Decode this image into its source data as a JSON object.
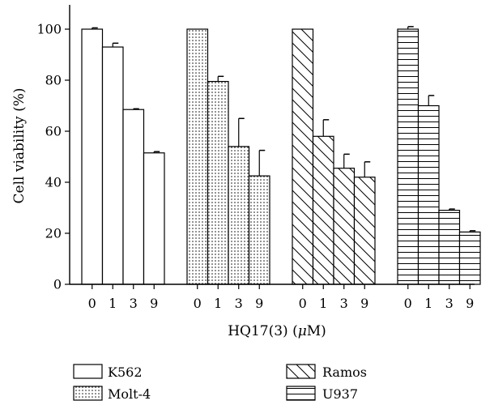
{
  "chart_data": {
    "type": "bar",
    "xlabel_main": "HQ17(3) (",
    "xlabel_unit_mu": "μ",
    "xlabel_unit_rest": "M)",
    "ylabel": "Cell viability (%)",
    "ylim": [
      0,
      100
    ],
    "yticks": [
      0,
      20,
      40,
      60,
      80,
      100
    ],
    "categories": [
      "0",
      "1",
      "3",
      "9"
    ],
    "series": [
      {
        "name": "K562",
        "pattern": "plain",
        "values": [
          100,
          93,
          68.5,
          51.5
        ],
        "errors": [
          0.5,
          1.5,
          0.3,
          0.5
        ]
      },
      {
        "name": "Molt-4",
        "pattern": "dots",
        "values": [
          100,
          79.5,
          54,
          42.5
        ],
        "errors": [
          0,
          2,
          11,
          10
        ]
      },
      {
        "name": "Ramos",
        "pattern": "diagonal",
        "values": [
          100,
          58,
          45.5,
          42
        ],
        "errors": [
          0,
          6.5,
          5.5,
          6
        ]
      },
      {
        "name": "U937",
        "pattern": "horizontal",
        "values": [
          100,
          70,
          29,
          20.5
        ],
        "errors": [
          1,
          4,
          0.5,
          0.5
        ]
      }
    ]
  }
}
